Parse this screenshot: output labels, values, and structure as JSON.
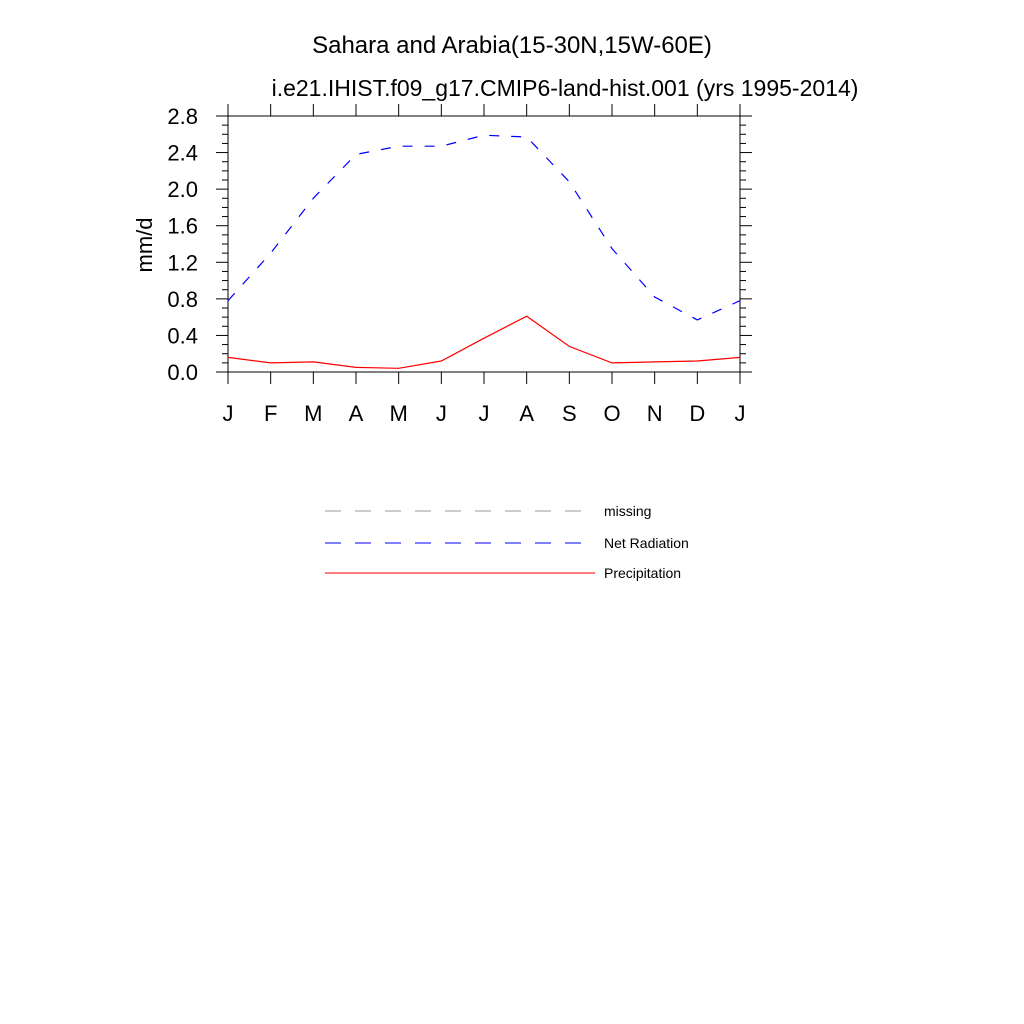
{
  "chart_data": {
    "type": "line",
    "title": "Sahara and Arabia(15-30N,15W-60E)",
    "subtitle": "i.e21.IHIST.f09_g17.CMIP6-land-hist.001 (yrs 1995-2014)",
    "xlabel": "",
    "ylabel": "mm/d",
    "categories": [
      "J",
      "F",
      "M",
      "A",
      "M",
      "J",
      "J",
      "A",
      "S",
      "O",
      "N",
      "D",
      "J"
    ],
    "ylim": [
      0.0,
      2.8
    ],
    "yticks": [
      "0.0",
      "0.4",
      "0.8",
      "1.2",
      "1.6",
      "2.0",
      "2.4",
      "2.8"
    ],
    "ytick_values": [
      0.0,
      0.4,
      0.8,
      1.2,
      1.6,
      2.0,
      2.4,
      2.8
    ],
    "grid": false,
    "legend_position": "bottom",
    "series": [
      {
        "name": "Net Radiation",
        "color": "#0000ff",
        "dash": "dashed",
        "values": [
          0.78,
          1.3,
          1.9,
          2.38,
          2.47,
          2.47,
          2.59,
          2.57,
          2.08,
          1.35,
          0.82,
          0.57,
          0.78
        ]
      },
      {
        "name": "Precipitation",
        "color": "#ff0000",
        "dash": "solid",
        "values": [
          0.16,
          0.1,
          0.11,
          0.05,
          0.04,
          0.12,
          0.37,
          0.61,
          0.28,
          0.1,
          0.11,
          0.12,
          0.16
        ]
      }
    ],
    "legend": [
      {
        "label": "missing",
        "color": "#999999",
        "dash": "dashed"
      },
      {
        "label": "Net Radiation",
        "color": "#0000ff",
        "dash": "dashed"
      },
      {
        "label": "Precipitation",
        "color": "#ff0000",
        "dash": "solid"
      }
    ]
  }
}
